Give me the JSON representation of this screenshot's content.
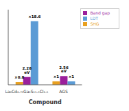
{
  "chart_data": {
    "type": "bar",
    "categories": [
      "La₆Cd₀.₇₅Ga₂S₁₁.₅Cl₂.₅",
      "AGS"
    ],
    "xlabel": "Compound",
    "series": [
      {
        "name": "SHG",
        "color": "#E8A020",
        "values": [
          0.8,
          1.0
        ],
        "value_labels": [
          "×0.8",
          "×1"
        ]
      },
      {
        "name": "Band gap",
        "color": "#9B1F9B",
        "values": [
          2.28,
          2.56
        ],
        "value_labels": [
          "2.28 eV",
          "2.56 eV"
        ]
      },
      {
        "name": "LDT",
        "color": "#5B9BD5",
        "values": [
          18.6,
          1.0
        ],
        "value_labels": [
          "×18.6",
          "×1"
        ]
      }
    ],
    "ylim": [
      0,
      22
    ],
    "data_labels": true,
    "legend": "upper right",
    "tick_labels": "x"
  }
}
